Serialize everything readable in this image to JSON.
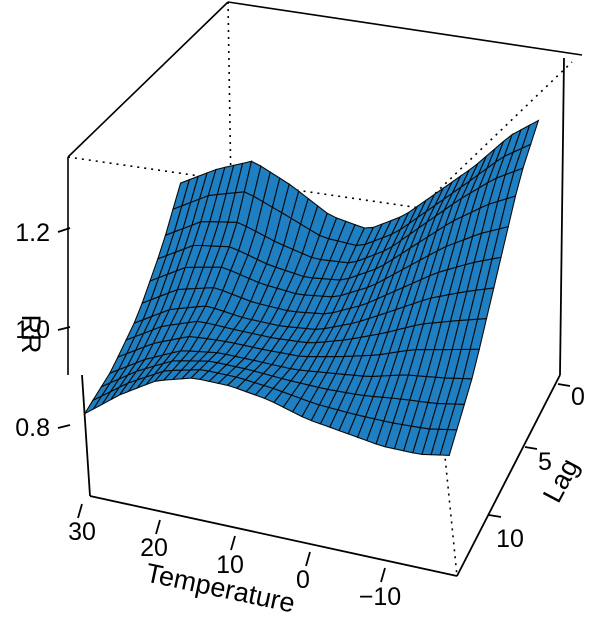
{
  "chart_data": {
    "type": "surface",
    "title": "",
    "xlabel": "Temperature",
    "ylabel": "Lag",
    "zlabel": "RR",
    "x_ticks": [
      "30",
      "20",
      "10",
      "0",
      "−10"
    ],
    "y_ticks": [
      "0",
      "5",
      "10"
    ],
    "z_ticks": [
      "0.8",
      "1.0",
      "1.2"
    ],
    "xlim": [
      -18,
      31
    ],
    "ylim": [
      0,
      15
    ],
    "zlim": [
      0.74,
      1.36
    ],
    "surface_color": "#1e7fc3",
    "grid": false,
    "box": true,
    "series": [
      {
        "lag": 0,
        "temperature": [
          31,
          26,
          21,
          16,
          11,
          6,
          1,
          -4,
          -9,
          -14,
          -18
        ],
        "rr": [
          1.09,
          1.13,
          1.16,
          1.13,
          1.09,
          1.08,
          1.12,
          1.18,
          1.24,
          1.31,
          1.35
        ]
      },
      {
        "lag": 3,
        "temperature": [
          31,
          26,
          21,
          16,
          11,
          6,
          1,
          -4,
          -9,
          -14,
          -18
        ],
        "rr": [
          1.02,
          1.06,
          1.07,
          1.05,
          1.04,
          1.05,
          1.09,
          1.15,
          1.21,
          1.26,
          1.29
        ]
      },
      {
        "lag": 7,
        "temperature": [
          31,
          26,
          21,
          16,
          11,
          6,
          1,
          -4,
          -9,
          -14,
          -18
        ],
        "rr": [
          0.95,
          0.99,
          1.01,
          1.0,
          1.0,
          1.01,
          1.04,
          1.08,
          1.12,
          1.15,
          1.17
        ]
      },
      {
        "lag": 11,
        "temperature": [
          31,
          26,
          21,
          16,
          11,
          6,
          1,
          -4,
          -9,
          -14,
          -18
        ],
        "rr": [
          0.91,
          0.95,
          0.98,
          0.99,
          0.99,
          0.99,
          1.0,
          1.01,
          1.03,
          1.04,
          1.05
        ]
      },
      {
        "lag": 15,
        "temperature": [
          31,
          26,
          21,
          16,
          11,
          6,
          1,
          -4,
          -9,
          -14,
          -18
        ],
        "rr": [
          0.89,
          0.94,
          0.98,
          1.0,
          1.0,
          0.99,
          0.97,
          0.96,
          0.95,
          0.95,
          0.96
        ]
      }
    ]
  }
}
